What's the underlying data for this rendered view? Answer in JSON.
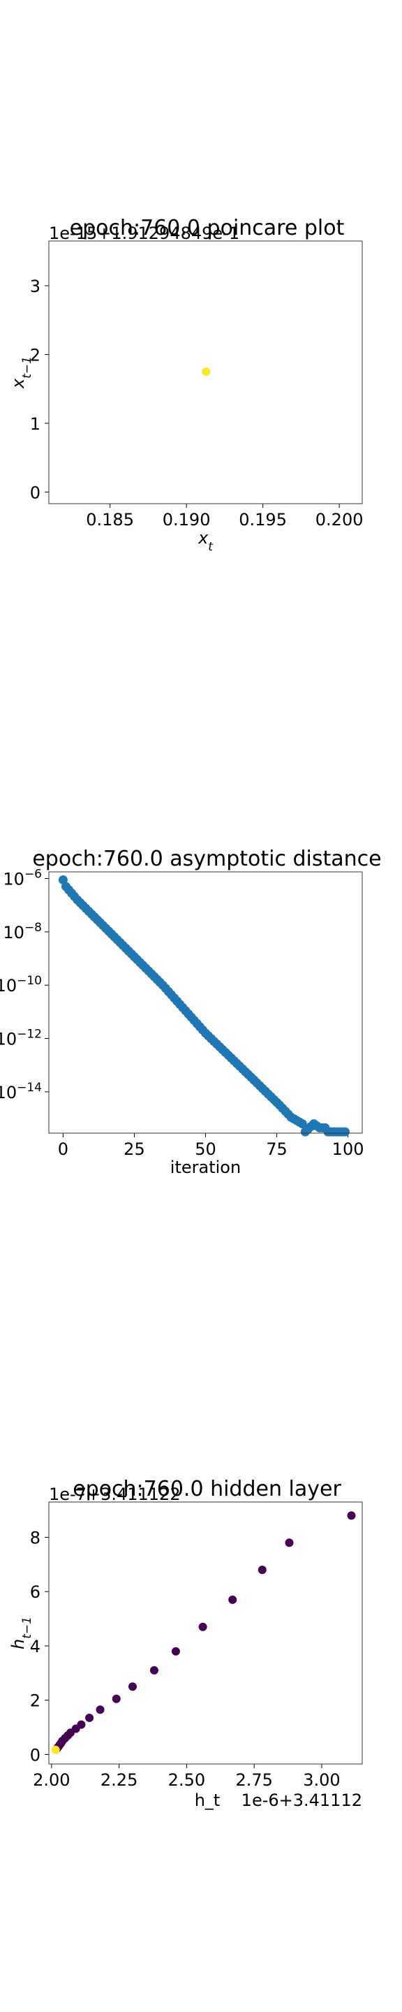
{
  "chart_data": [
    {
      "type": "scatter",
      "title": "epoch:760.0 poincare plot",
      "xlabel": "x_t",
      "ylabel": "x_{t-1}",
      "x_offset_text": "",
      "y_offset_text": "1e-15+1.91294849e-1",
      "xlim": [
        0.181,
        0.2015
      ],
      "ylim": [
        -0.17,
        3.65
      ],
      "xticks": [
        "0.185",
        "0.190",
        "0.195",
        "0.200"
      ],
      "xtick_values": [
        0.185,
        0.19,
        0.195,
        0.2
      ],
      "yticks": [
        "0",
        "1",
        "2",
        "3"
      ],
      "ytick_values": [
        0,
        1,
        2,
        3
      ],
      "grid": false,
      "color": "#fde725",
      "points": [
        {
          "x": 0.19129,
          "y": 1.75
        }
      ]
    },
    {
      "type": "scatter",
      "title": "epoch:760.0 asymptotic distance",
      "xlabel": "iteration",
      "ylabel": "",
      "y_scale": "log",
      "xlim": [
        -5,
        105
      ],
      "ylim_log10": [
        -15.55,
        -5.75
      ],
      "xticks": [
        "0",
        "25",
        "50",
        "75",
        "100"
      ],
      "xtick_values": [
        0,
        25,
        50,
        75,
        100
      ],
      "yticks": [
        "10^-6",
        "10^-8",
        "10^-10",
        "10^-12",
        "10^-14"
      ],
      "ytick_log10": [
        -6,
        -8,
        -10,
        -12,
        -14
      ],
      "grid": false,
      "color": "#1f77b4",
      "series_log10": [
        [
          0,
          -6.05
        ],
        [
          1,
          -6.3
        ],
        [
          5,
          -6.8
        ],
        [
          20,
          -8.4
        ],
        [
          35,
          -10.0
        ],
        [
          50,
          -11.8
        ],
        [
          65,
          -13.35
        ],
        [
          76,
          -14.5
        ],
        [
          80,
          -14.95
        ],
        [
          84,
          -15.2
        ],
        [
          85,
          -15.5
        ],
        [
          88,
          -15.2
        ],
        [
          90,
          -15.35
        ],
        [
          92,
          -15.35
        ],
        [
          93,
          -15.5
        ],
        [
          99,
          -15.5
        ]
      ]
    },
    {
      "type": "scatter",
      "title": "epoch:760.0 hidden layer",
      "xlabel": "h_t",
      "ylabel": "h_{t-1}",
      "x_offset_text": "1e-6+3.41112",
      "y_offset_text": "1e-7+3.411122",
      "xlim": [
        1.99,
        3.15
      ],
      "ylim": [
        -0.35,
        9.3
      ],
      "xticks": [
        "2.00",
        "2.25",
        "2.50",
        "2.75",
        "3.00"
      ],
      "xtick_values": [
        2.0,
        2.25,
        2.5,
        2.75,
        3.0
      ],
      "yticks": [
        "0",
        "2",
        "4",
        "6",
        "8"
      ],
      "ytick_values": [
        0,
        2,
        4,
        6,
        8
      ],
      "grid": false,
      "color_scale": [
        "#440154",
        "#fde725"
      ],
      "points": [
        {
          "x": 3.11,
          "y": 8.8
        },
        {
          "x": 2.88,
          "y": 7.8
        },
        {
          "x": 2.78,
          "y": 6.8
        },
        {
          "x": 2.67,
          "y": 5.7
        },
        {
          "x": 2.56,
          "y": 4.7
        },
        {
          "x": 2.46,
          "y": 3.8
        },
        {
          "x": 2.38,
          "y": 3.1
        },
        {
          "x": 2.3,
          "y": 2.5
        },
        {
          "x": 2.24,
          "y": 2.05
        },
        {
          "x": 2.18,
          "y": 1.65
        },
        {
          "x": 2.14,
          "y": 1.35
        },
        {
          "x": 2.11,
          "y": 1.1
        },
        {
          "x": 2.09,
          "y": 0.95
        },
        {
          "x": 2.07,
          "y": 0.8
        },
        {
          "x": 2.06,
          "y": 0.7
        },
        {
          "x": 2.05,
          "y": 0.6
        },
        {
          "x": 2.04,
          "y": 0.5
        },
        {
          "x": 2.035,
          "y": 0.42
        },
        {
          "x": 2.03,
          "y": 0.35
        },
        {
          "x": 2.025,
          "y": 0.28
        },
        {
          "x": 2.02,
          "y": 0.22
        },
        {
          "x": 2.015,
          "y": 0.17
        }
      ]
    }
  ]
}
